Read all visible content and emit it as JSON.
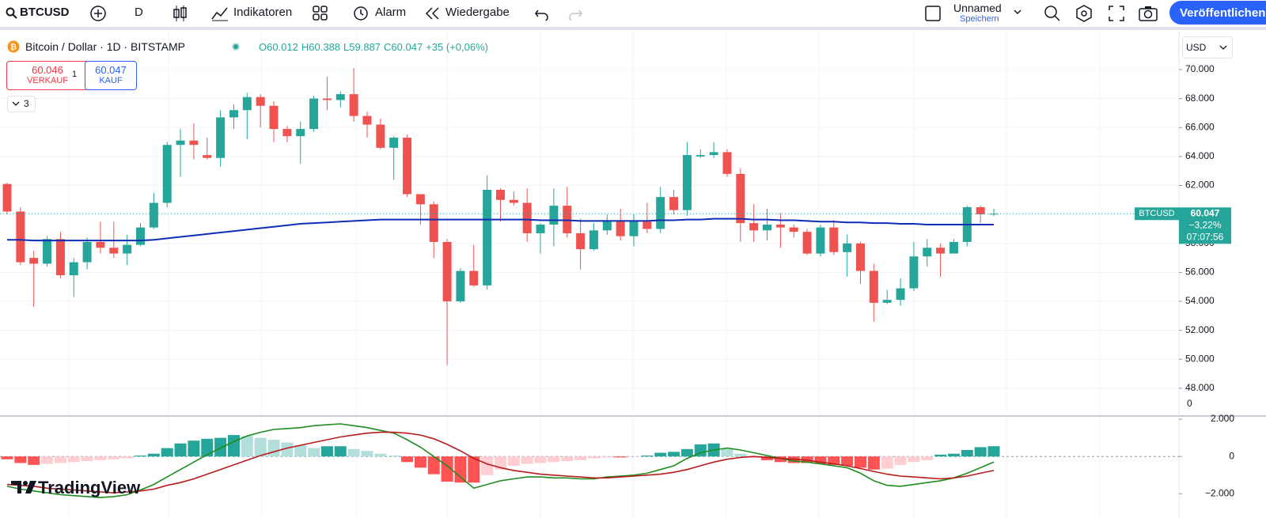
{
  "ui": {
    "toolbar": {
      "symbol": "BTCUSD",
      "interval": "D",
      "indicators": "Indikatoren",
      "alert": "Alarm",
      "replay": "Wiedergabe",
      "layout_name": "Unnamed",
      "save": "Speichern",
      "publish": "Veröffentlichen"
    },
    "legend": {
      "ohlc": [
        "O60.012",
        "H60.388",
        "L59.887",
        "C60.047"
      ],
      "change": "+35 (+0,06%)"
    },
    "trade": {
      "sell_price": "60.046",
      "sell": "VERKAUF",
      "spread": "1",
      "buy_price": "60.047",
      "buy": "KAUF"
    },
    "collapse": "3",
    "currency": "USD",
    "price_tag": {
      "symbol": "BTCUSD",
      "price": "60.047",
      "change": "−3,22%",
      "countdown": "07:07:56"
    },
    "scale_zero": "0",
    "logo": "TradingView"
  },
  "chart_data": [
    {
      "type": "candlestick",
      "title": "Bitcoin / Dollar · 1D · BITSTAMP",
      "open": [
        62100,
        60200,
        57000,
        56600,
        58300,
        55800,
        56700,
        58100,
        57700,
        57300,
        57900,
        59100,
        60800,
        64800,
        65100,
        64100,
        63900,
        66700,
        67200,
        68100,
        67500,
        65900,
        65400,
        65900,
        68000,
        67900,
        68300,
        66800,
        66200,
        64600,
        65300,
        61400,
        60700,
        58100,
        54000,
        56100,
        55100,
        61700,
        61000,
        60800,
        58700,
        59300,
        60600,
        58700,
        57600,
        58900,
        59500,
        58500,
        59500,
        59000,
        61200,
        60300,
        64000,
        64100,
        64300,
        62800,
        59400,
        58900,
        59300,
        59100,
        58800,
        57300,
        59100,
        57400,
        58000,
        56100,
        53900,
        54100,
        54900,
        57100,
        57700,
        57300,
        58100,
        60500,
        60012
      ],
      "high": [
        62200,
        60500,
        57500,
        58500,
        58800,
        57000,
        58400,
        59500,
        59500,
        58600,
        59400,
        61500,
        65000,
        65900,
        66300,
        65300,
        67200,
        67600,
        68400,
        68300,
        67800,
        66100,
        66400,
        68200,
        69500,
        68500,
        70100,
        67100,
        66600,
        65400,
        65500,
        61400,
        60900,
        58300,
        56300,
        57900,
        62700,
        61800,
        61600,
        61800,
        59400,
        61800,
        61900,
        59700,
        59400,
        60000,
        60400,
        60000,
        60800,
        61900,
        61700,
        65000,
        64500,
        65000,
        64500,
        63200,
        60700,
        60400,
        60100,
        59300,
        59000,
        59300,
        59600,
        58600,
        58100,
        56600,
        54800,
        55600,
        58100,
        58300,
        58000,
        58300,
        60600,
        60600,
        60388
      ],
      "low": [
        60000,
        56500,
        53600,
        56400,
        55600,
        54300,
        56200,
        57300,
        57000,
        56500,
        57800,
        59000,
        60500,
        62600,
        63800,
        63800,
        63300,
        65900,
        65200,
        66000,
        65000,
        65000,
        63500,
        65700,
        67200,
        67400,
        66400,
        65300,
        64500,
        62400,
        61200,
        59300,
        57000,
        49600,
        53900,
        55000,
        54800,
        59500,
        60600,
        58100,
        57300,
        57800,
        58400,
        56200,
        57500,
        58600,
        58200,
        57800,
        58700,
        58700,
        60000,
        59900,
        63900,
        63900,
        62600,
        58100,
        58100,
        58200,
        57700,
        58400,
        57200,
        57100,
        57200,
        55700,
        55200,
        52600,
        53800,
        53700,
        54700,
        56400,
        55700,
        57300,
        57800,
        59400,
        59887
      ],
      "close": [
        60200,
        56700,
        56600,
        58300,
        55800,
        56700,
        58100,
        57700,
        57300,
        57900,
        59100,
        60800,
        64800,
        65100,
        64800,
        63900,
        66700,
        67200,
        68100,
        67500,
        65900,
        65400,
        65900,
        68000,
        67900,
        68300,
        66800,
        66200,
        64600,
        65300,
        61400,
        60700,
        58100,
        54000,
        56100,
        55100,
        61700,
        61000,
        60800,
        58700,
        59300,
        60600,
        58700,
        57600,
        58900,
        59500,
        58500,
        59500,
        59000,
        61200,
        60300,
        64100,
        64100,
        64300,
        62800,
        59400,
        58900,
        59300,
        59100,
        58800,
        57300,
        59100,
        57400,
        58000,
        56100,
        53900,
        54100,
        54900,
        57100,
        57700,
        57300,
        58100,
        60500,
        60012,
        60047
      ],
      "up_color": "#26a69a",
      "down_color": "#ef5350",
      "ma": {
        "color": "#0d2db5",
        "values": [
          58250,
          58250,
          58200,
          58200,
          58200,
          58200,
          58200,
          58200,
          58200,
          58200,
          58200,
          58250,
          58350,
          58450,
          58550,
          58650,
          58750,
          58850,
          58950,
          59050,
          59150,
          59250,
          59350,
          59400,
          59450,
          59500,
          59550,
          59600,
          59650,
          59650,
          59650,
          59650,
          59650,
          59650,
          59650,
          59650,
          59650,
          59650,
          59650,
          59650,
          59600,
          59600,
          59600,
          59550,
          59550,
          59550,
          59550,
          59550,
          59550,
          59600,
          59600,
          59650,
          59650,
          59700,
          59700,
          59700,
          59650,
          59650,
          59600,
          59600,
          59550,
          59500,
          59500,
          59450,
          59450,
          59400,
          59400,
          59350,
          59350,
          59300,
          59300,
          59300,
          59300,
          59300,
          59300
        ]
      },
      "ylim": [
        46140,
        72620
      ],
      "yticks": [
        {
          "value": 48000,
          "label": "48.000"
        },
        {
          "value": 50000,
          "label": "50.000"
        },
        {
          "value": 52000,
          "label": "52.000"
        },
        {
          "value": 54000,
          "label": "54.000"
        },
        {
          "value": 56000,
          "label": "56.000"
        },
        {
          "value": 58000,
          "label": "58.000"
        },
        {
          "value": 60000,
          "label": "60.000"
        },
        {
          "value": 62000,
          "label": "62.000"
        },
        {
          "value": 64000,
          "label": "64.000"
        },
        {
          "value": 66000,
          "label": "66.000"
        },
        {
          "value": 68000,
          "label": "68.000"
        },
        {
          "value": 70000,
          "label": "70.000"
        }
      ],
      "grid": true
    },
    {
      "type": "macd",
      "histogram": {
        "colors": {
          "pos_up": "#26a69a",
          "pos_down": "#b2dfdb",
          "neg_down": "#ff5252",
          "neg_up": "#ffcdd2"
        },
        "values": [
          -150,
          -350,
          -450,
          -400,
          -350,
          -300,
          -250,
          -200,
          -150,
          -100,
          50,
          150,
          450,
          700,
          850,
          950,
          1000,
          1150,
          1100,
          1000,
          900,
          750,
          600,
          450,
          550,
          550,
          400,
          300,
          150,
          50,
          -300,
          -600,
          -950,
          -1350,
          -1400,
          -1400,
          -1000,
          -700,
          -500,
          -400,
          -350,
          -300,
          -250,
          -200,
          -100,
          -50,
          -50,
          -10,
          50,
          200,
          250,
          400,
          650,
          700,
          400,
          150,
          -50,
          -200,
          -300,
          -350,
          -350,
          -400,
          -450,
          -500,
          -600,
          -700,
          -650,
          -450,
          -300,
          -200,
          100,
          150,
          350,
          500,
          550
        ]
      },
      "series": [
        {
          "color": "#1e8c1e",
          "values": [
            -1600,
            -1750,
            -1850,
            -1950,
            -2050,
            -2100,
            -2150,
            -2200,
            -2150,
            -2050,
            -1800,
            -1500,
            -1100,
            -700,
            -300,
            100,
            450,
            800,
            1100,
            1300,
            1450,
            1500,
            1550,
            1650,
            1700,
            1750,
            1650,
            1550,
            1400,
            1250,
            900,
            500,
            0,
            -500,
            -1100,
            -1700,
            -1500,
            -1300,
            -1200,
            -1100,
            -1100,
            -1150,
            -1150,
            -1200,
            -1200,
            -1100,
            -1050,
            -1000,
            -900,
            -700,
            -500,
            -100,
            200,
            350,
            450,
            350,
            200,
            50,
            -100,
            -250,
            -300,
            -400,
            -500,
            -600,
            -900,
            -1300,
            -1550,
            -1600,
            -1500,
            -1400,
            -1300,
            -1150,
            -900,
            -600,
            -300
          ]
        },
        {
          "color": "#b71c1c",
          "values": [
            -1500,
            -1550,
            -1600,
            -1700,
            -1750,
            -1800,
            -1850,
            -1900,
            -1950,
            -1900,
            -1850,
            -1750,
            -1550,
            -1400,
            -1200,
            -950,
            -700,
            -450,
            -200,
            50,
            250,
            450,
            600,
            750,
            900,
            1050,
            1150,
            1250,
            1300,
            1300,
            1250,
            1150,
            950,
            650,
            300,
            -100,
            -400,
            -600,
            -750,
            -850,
            -950,
            -1000,
            -1050,
            -1100,
            -1150,
            -1150,
            -1100,
            -1050,
            -1000,
            -950,
            -850,
            -700,
            -500,
            -300,
            -150,
            -50,
            0,
            -50,
            -100,
            -150,
            -200,
            -300,
            -400,
            -500,
            -650,
            -800,
            -950,
            -1050,
            -1100,
            -1150,
            -1200,
            -1150,
            -1050,
            -900,
            -750
          ]
        }
      ],
      "ylim": [
        -3300,
        2130
      ],
      "yticks": [
        {
          "value": 2000,
          "label": "2.000"
        },
        0,
        {
          "value": -2000,
          "label": "−2.000"
        }
      ]
    }
  ]
}
